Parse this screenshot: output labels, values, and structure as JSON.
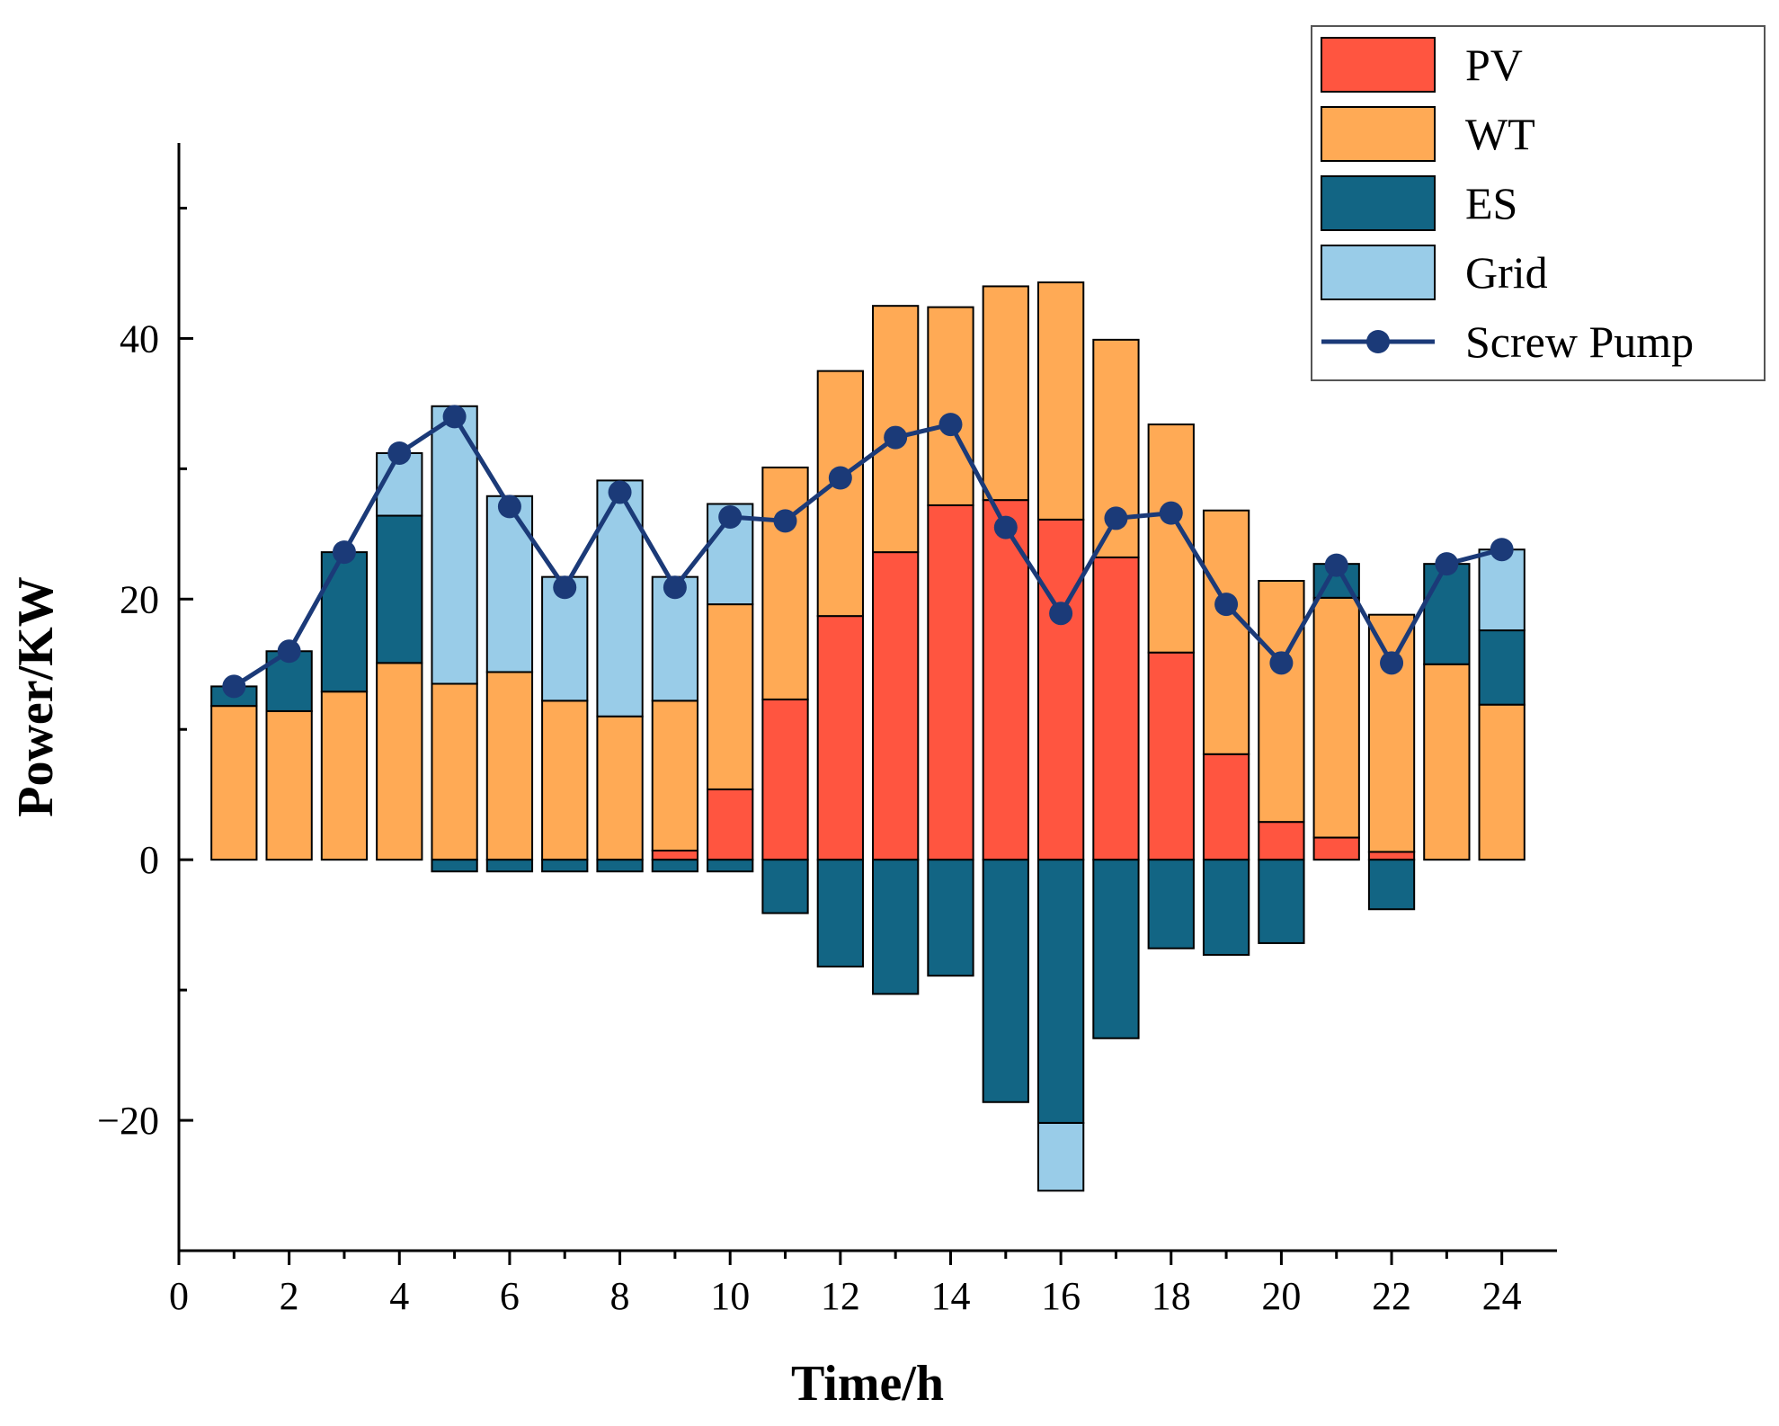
{
  "chart_data": {
    "type": "bar",
    "subtype": "stacked bar with line",
    "xlabel": "Time/h",
    "ylabel": "Power/KW",
    "xlim": [
      0,
      25
    ],
    "ylim": [
      -30,
      55
    ],
    "xticks": [
      0,
      2,
      4,
      6,
      8,
      10,
      12,
      14,
      16,
      18,
      20,
      22,
      24
    ],
    "yticks": [
      -20,
      0,
      20,
      40
    ],
    "grid": false,
    "legend_position": "top-right",
    "x": [
      1,
      2,
      3,
      4,
      5,
      6,
      7,
      8,
      9,
      10,
      11,
      12,
      13,
      14,
      15,
      16,
      17,
      18,
      19,
      20,
      21,
      22,
      23,
      24
    ],
    "series": [
      {
        "name": "PV",
        "kind": "bar",
        "color": "#FF5540",
        "values": [
          0,
          0,
          0,
          0,
          0,
          0,
          0,
          0,
          0.7,
          5.4,
          12.3,
          18.7,
          23.6,
          27.2,
          27.6,
          26.1,
          23.2,
          15.9,
          8.1,
          2.9,
          1.7,
          0.6,
          0,
          0
        ]
      },
      {
        "name": "WT",
        "kind": "bar",
        "color": "#FFAA55",
        "values": [
          11.8,
          11.4,
          12.9,
          15.1,
          13.5,
          14.4,
          12.2,
          11.0,
          11.5,
          14.2,
          17.8,
          18.8,
          18.9,
          15.2,
          16.4,
          18.2,
          16.7,
          17.5,
          18.7,
          18.5,
          18.4,
          18.2,
          15.0,
          11.9
        ]
      },
      {
        "name": "ES",
        "kind": "bar",
        "color": "#126584",
        "values": [
          1.5,
          4.6,
          10.7,
          11.3,
          -0.9,
          -0.9,
          -0.9,
          -0.9,
          -0.9,
          -0.9,
          -4.1,
          -8.2,
          -10.3,
          -8.9,
          -18.6,
          -20.2,
          -13.7,
          -6.8,
          -7.3,
          -6.4,
          2.6,
          -3.8,
          7.7,
          5.7
        ]
      },
      {
        "name": "Grid",
        "kind": "bar",
        "color": "#99CCE8",
        "values": [
          0,
          0,
          0,
          4.8,
          21.3,
          13.5,
          9.5,
          18.1,
          9.5,
          7.7,
          0,
          0,
          0,
          0,
          0,
          -5.2,
          0,
          0,
          0,
          0,
          0,
          0,
          0,
          6.2
        ]
      },
      {
        "name": "Screw Pump",
        "kind": "line",
        "color": "#1B3A78",
        "values": [
          13.3,
          16.0,
          23.6,
          31.2,
          34.0,
          27.1,
          20.9,
          28.2,
          20.9,
          26.3,
          26.0,
          29.3,
          32.4,
          33.4,
          25.5,
          18.9,
          26.2,
          26.6,
          19.6,
          15.1,
          22.6,
          15.1,
          22.7,
          23.8
        ]
      }
    ]
  }
}
